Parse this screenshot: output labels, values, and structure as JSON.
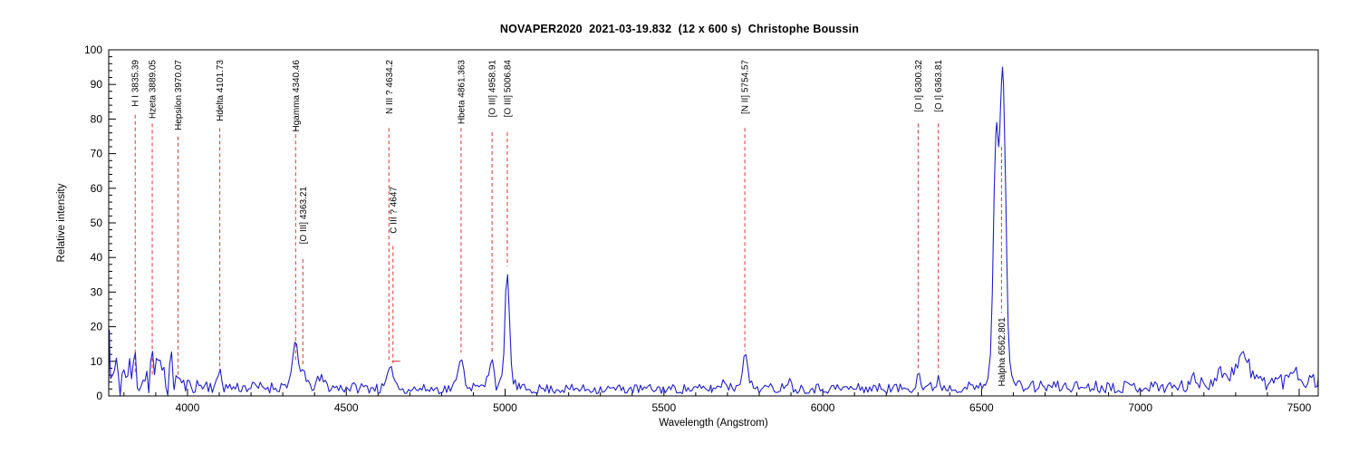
{
  "chart_data": {
    "type": "line",
    "title": "NOVAPER2020  2021-03-19.832  (12 x 600 s)  Christophe Boussin",
    "xlabel": "Wavelength (Angstrom)",
    "ylabel": "Relative intensity",
    "x_domain": [
      3752,
      7560
    ],
    "y_domain": [
      0,
      100
    ],
    "x_ticks": [
      4000,
      4500,
      5000,
      5500,
      6000,
      6500,
      7000,
      7500
    ],
    "x_minor_step": 100,
    "y_ticks": [
      0,
      10,
      20,
      30,
      40,
      50,
      60,
      70,
      80,
      90,
      100
    ],
    "y_minor_step": 2,
    "grid": false,
    "line_color": "#1f1fd0",
    "annotation_color": "#e03434",
    "axis_color": "#000000",
    "noise_seed": 11,
    "sample_step": 6,
    "noise_segments": [
      {
        "from": 3752,
        "to": 3958,
        "base": 6.0,
        "amp": 7.0
      },
      {
        "from": 3958,
        "to": 4085,
        "base": 3.0,
        "amp": 2.2
      },
      {
        "from": 4085,
        "to": 4320,
        "base": 2.5,
        "amp": 1.7
      },
      {
        "from": 4320,
        "to": 4600,
        "base": 2.4,
        "amp": 1.6
      },
      {
        "from": 4600,
        "to": 4840,
        "base": 2.0,
        "amp": 1.4
      },
      {
        "from": 4840,
        "to": 5048,
        "base": 2.4,
        "amp": 1.5
      },
      {
        "from": 5048,
        "to": 5650,
        "base": 2.0,
        "amp": 1.4
      },
      {
        "from": 5650,
        "to": 6262,
        "base": 2.2,
        "amp": 1.5
      },
      {
        "from": 6262,
        "to": 6512,
        "base": 2.5,
        "amp": 1.6
      },
      {
        "from": 6512,
        "to": 6608,
        "base": 2.5,
        "amp": 0.8
      },
      {
        "from": 6608,
        "to": 7150,
        "base": 2.7,
        "amp": 1.8
      },
      {
        "from": 7150,
        "to": 7425,
        "base": 4.3,
        "amp": 2.6
      },
      {
        "from": 7425,
        "to": 7560,
        "base": 4.5,
        "amp": 2.6
      }
    ],
    "peaks": [
      {
        "center": 3835.4,
        "height": 4.0,
        "sigma": 4
      },
      {
        "center": 3889.0,
        "height": 6.0,
        "sigma": 4
      },
      {
        "center": 3920.0,
        "height": 4.0,
        "sigma": 3
      },
      {
        "center": 3970.1,
        "height": 3.0,
        "sigma": 6
      },
      {
        "center": 4101.7,
        "height": 5.5,
        "sigma": 5
      },
      {
        "center": 4340.5,
        "height": 11.0,
        "sigma": 7
      },
      {
        "center": 4340.5,
        "height": 2.5,
        "sigma": 22
      },
      {
        "center": 4363.2,
        "height": 5.0,
        "sigma": 5
      },
      {
        "center": 4420.0,
        "height": 2.5,
        "sigma": 12
      },
      {
        "center": 4636.0,
        "height": 4.5,
        "sigma": 9
      },
      {
        "center": 4650.0,
        "height": 3.0,
        "sigma": 7
      },
      {
        "center": 4861.4,
        "height": 8.0,
        "sigma": 6
      },
      {
        "center": 4861.4,
        "height": 2.0,
        "sigma": 16
      },
      {
        "center": 4947.0,
        "height": 3.2,
        "sigma": 6
      },
      {
        "center": 4958.9,
        "height": 9.0,
        "sigma": 5.5
      },
      {
        "center": 5006.8,
        "height": 32.0,
        "sigma": 6.5
      },
      {
        "center": 5008.0,
        "height": 2.5,
        "sigma": 16
      },
      {
        "center": 5690.0,
        "height": 2.2,
        "sigma": 9
      },
      {
        "center": 5754.6,
        "height": 9.5,
        "sigma": 6.5
      },
      {
        "center": 5754.6,
        "height": 1.8,
        "sigma": 18
      },
      {
        "center": 5890.0,
        "height": 2.3,
        "sigma": 9
      },
      {
        "center": 6300.3,
        "height": 4.8,
        "sigma": 5
      },
      {
        "center": 6363.8,
        "height": 2.8,
        "sigma": 5
      },
      {
        "center": 7260.0,
        "height": 3.0,
        "sigma": 12
      },
      {
        "center": 7320.0,
        "height": 7.5,
        "sigma": 20
      },
      {
        "center": 7485.0,
        "height": 4.5,
        "sigma": 9
      }
    ],
    "overrides": [
      {
        "range": [
          3752,
          3764
        ],
        "points": [
          [
            3752,
            3
          ],
          [
            3754,
            19
          ],
          [
            3756,
            10
          ],
          [
            3758,
            5
          ],
          [
            3764,
            6
          ]
        ]
      },
      {
        "range": [
          6512,
          6608
        ],
        "points": [
          [
            6512,
            3
          ],
          [
            6520,
            5
          ],
          [
            6528,
            12
          ],
          [
            6534,
            30
          ],
          [
            6540,
            60
          ],
          [
            6545,
            76
          ],
          [
            6548,
            79
          ],
          [
            6551,
            75
          ],
          [
            6554,
            72
          ],
          [
            6557,
            76
          ],
          [
            6560,
            84
          ],
          [
            6563,
            91
          ],
          [
            6566,
            95
          ],
          [
            6569,
            90
          ],
          [
            6572,
            78
          ],
          [
            6576,
            60
          ],
          [
            6580,
            38
          ],
          [
            6584,
            20
          ],
          [
            6589,
            10
          ],
          [
            6595,
            6
          ],
          [
            6602,
            4
          ],
          [
            6608,
            3
          ]
        ]
      }
    ],
    "emission_lines": [
      {
        "wavelength": 3835.39,
        "label": "H I 3835.39",
        "pos": "top",
        "end_intensity": 6
      },
      {
        "wavelength": 3889.05,
        "label": "Hzeta 3889.05",
        "pos": "top",
        "end_intensity": 6
      },
      {
        "wavelength": 3970.07,
        "label": "Hepsilon 3970.07",
        "pos": "top",
        "end_intensity": 5
      },
      {
        "wavelength": 4101.73,
        "label": "Hdelta 4101.73",
        "pos": "top",
        "end_intensity": 7.5
      },
      {
        "wavelength": 4340.46,
        "label": "Hgamma 4340.46",
        "pos": "top",
        "end_intensity": 10
      },
      {
        "wavelength": 4363.21,
        "label": "[O III] 4363.21",
        "pos": "mid",
        "end_intensity": 9
      },
      {
        "wavelength": 4634.2,
        "label": "N III ? 4634.2",
        "pos": "top",
        "end_intensity": 10
      },
      {
        "wavelength": 4647.0,
        "label": "C III ? 4647",
        "pos": "mid",
        "end_intensity": 9.5,
        "htick": true
      },
      {
        "wavelength": 4861.363,
        "label": "Hbeta 4861.363",
        "pos": "top",
        "end_intensity": 12.5
      },
      {
        "wavelength": 4958.91,
        "label": "[O III] 4958.91",
        "pos": "top",
        "end_intensity": 12
      },
      {
        "wavelength": 5006.84,
        "label": "[O III] 5006.84",
        "pos": "top",
        "end_intensity": 37.5
      },
      {
        "wavelength": 5754.57,
        "label": "[N II] 5754.57",
        "pos": "top",
        "end_intensity": 13
      },
      {
        "wavelength": 6300.32,
        "label": "[O I] 6300.32",
        "pos": "top",
        "end_intensity": 8
      },
      {
        "wavelength": 6363.81,
        "label": "[O I] 6363.81",
        "pos": "top",
        "end_intensity": 7
      },
      {
        "wavelength": 6562.801,
        "label": "Halpha 6562.801",
        "pos": "bottom",
        "start_intensity": 72,
        "end_intensity": 24
      }
    ]
  }
}
